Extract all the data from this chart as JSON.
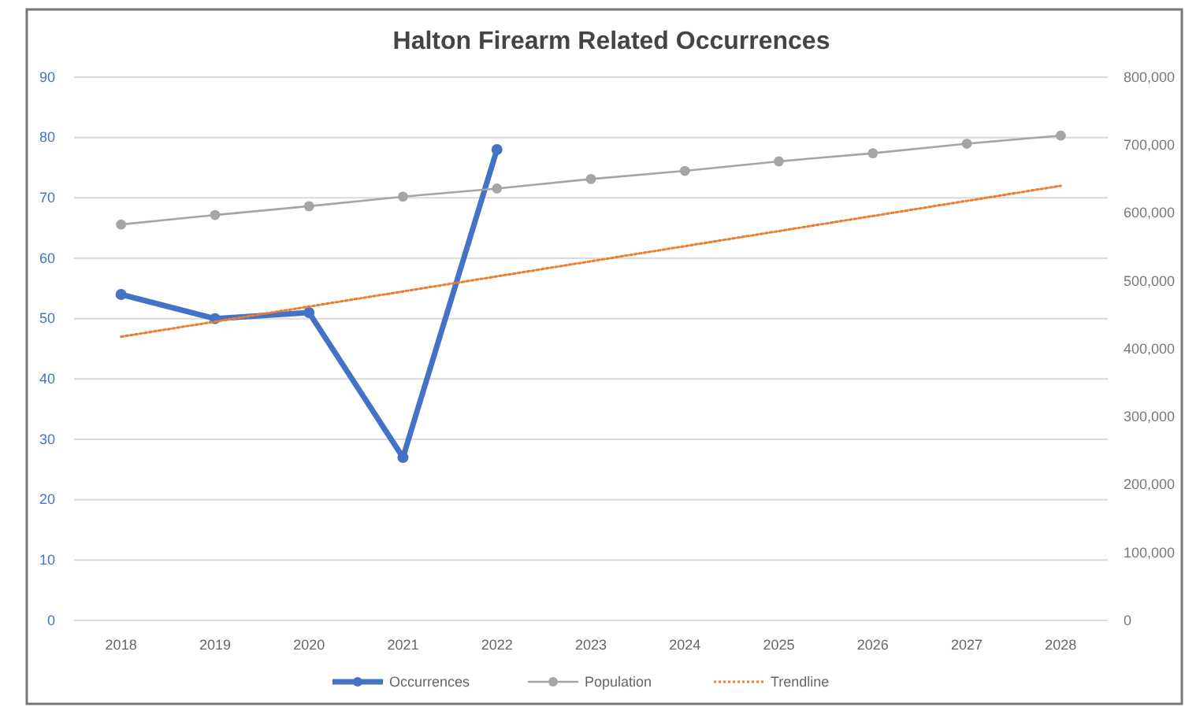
{
  "chart_data": {
    "type": "line",
    "title": "Halton Firearm Related Occurrences",
    "categories": [
      "2018",
      "2019",
      "2020",
      "2021",
      "2022",
      "2023",
      "2024",
      "2025",
      "2026",
      "2027",
      "2028"
    ],
    "series": [
      {
        "name": "Occurrences",
        "color": "#4472c4",
        "values": [
          54,
          50,
          51,
          27,
          78,
          null,
          null,
          null,
          null,
          null,
          null
        ],
        "marker": "circle",
        "line_style": "solid"
      },
      {
        "name": "Population",
        "color": "#a5a5a5",
        "axis": "y2",
        "values": [
          583000,
          597000,
          610000,
          624000,
          636000,
          650000,
          662000,
          676000,
          688000,
          702000,
          714000
        ],
        "marker": "circle",
        "line_style": "solid"
      },
      {
        "name": "Trendline",
        "color": "#ed7d31",
        "type": "line",
        "values": [
          47,
          49.5,
          52,
          54.5,
          57,
          59.5,
          62,
          64.5,
          67,
          69.5,
          72
        ],
        "marker": "none",
        "line_style": "dotted"
      }
    ],
    "ylim": [
      0,
      90
    ],
    "yticks": [
      0,
      10,
      20,
      30,
      40,
      50,
      60,
      70,
      80,
      90
    ],
    "y2lim": [
      0,
      800000
    ],
    "y2ticks": [
      {
        "value": 0,
        "label": "0"
      },
      {
        "value": 100000,
        "label": "100,000"
      },
      {
        "value": 200000,
        "label": "200,000"
      },
      {
        "value": 300000,
        "label": "300,000"
      },
      {
        "value": 400000,
        "label": "400,000"
      },
      {
        "value": 500000,
        "label": "500,000"
      },
      {
        "value": 600000,
        "label": "600,000"
      },
      {
        "value": 700000,
        "label": "700,000"
      },
      {
        "value": 800000,
        "label": "800,000"
      }
    ],
    "grid": "y",
    "legend": "bottom"
  }
}
